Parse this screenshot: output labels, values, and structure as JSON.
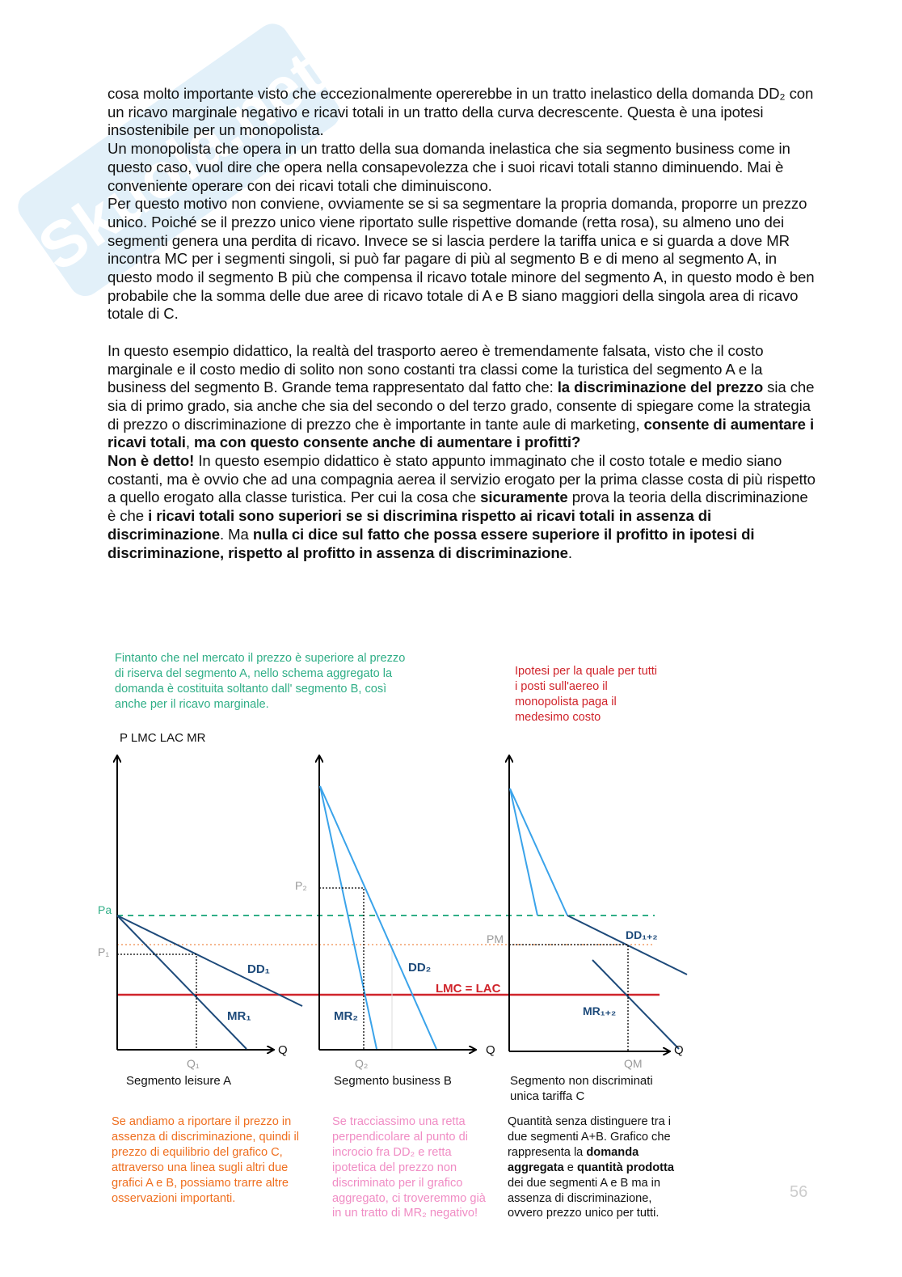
{
  "paragraphs": [
    "cosa molto importante visto che eccezionalmente opererebbe in un tratto inelastico della domanda DD₂ con un ricavo marginale negativo e ricavi totali in un tratto della curva decrescente. Questa è una ipotesi insostenibile per un monopolista.",
    "Un monopolista che opera in un tratto della sua domanda inelastica che sia segmento business come in questo caso, vuol dire che opera nella consapevolezza che i suoi ricavi totali stanno diminuendo. Mai è conveniente operare con dei ricavi totali che diminuiscono.",
    "Per questo motivo non conviene, ovviamente se si sa segmentare la propria domanda, proporre un prezzo unico. Poiché se il prezzo unico viene riportato sulle rispettive domande (retta rosa), su almeno uno dei segmenti genera una perdita di ricavo. Invece se si lascia perdere la tariffa unica e si guarda a dove MR incontra MC per i segmenti singoli, si può far pagare di più al segmento B e di meno al segmento A, in questo modo il segmento B più che compensa il ricavo totale minore del segmento A, in questo modo è ben probabile che la somma delle due aree di ricavo totale di A e B siano maggiori della singola area di ricavo totale di C."
  ],
  "para4": {
    "t1": "In questo esempio didattico, la realtà del trasporto aereo è tremendamente falsata, visto che il costo marginale e il costo medio di solito non sono costanti tra classi come la turistica del segmento A e la business del segmento B. Grande tema rappresentato dal fatto che: ",
    "b1": "la discriminazione del prezzo",
    "t2": " sia che sia di primo grado, sia anche che sia del secondo o del terzo grado, consente di spiegare come la strategia di prezzo o discriminazione di prezzo che è importante in tante aule di marketing, ",
    "b2": "consente di aumentare i ricavi totali",
    "t3": ", ",
    "b3": "ma con questo consente anche di aumentare i profitti?"
  },
  "para5": {
    "b1": "Non è detto!",
    "t1": " In questo esempio didattico è stato appunto immaginato che il costo totale e medio siano costanti, ma è ovvio che ad una compagnia aerea il servizio erogato per la prima classe costa di più rispetto a quello erogato alla classe turistica. Per cui la cosa che ",
    "b2": "sicuramente",
    "t2": " prova la teoria della discriminazione è che ",
    "b3": "i ricavi totali sono superiori se si discrimina rispetto ai ricavi totali in assenza di discriminazione",
    "t3": ". Ma ",
    "b4": "nulla ci dice sul fatto che possa essere superiore il profitto in ipotesi di discriminazione, rispetto al profitto in assenza di discriminazione",
    "t4": "."
  },
  "diagram": {
    "note_green": "Fintanto che nel mercato il prezzo è superiore al prezzo di riserva del segmento A, nello schema aggregato la domanda è costituita soltanto dall' segmento B, così anche per il ricavo marginale.",
    "note_red": "Ipotesi per la quale per tutti i posti sull'aereo il monopolista paga il medesimo costo",
    "y_axis_label": "P LMC LAC MR",
    "labels": {
      "pa": "Pa",
      "p1": "P₁",
      "p2": "P₂",
      "pm": "PM",
      "dd1": "DD₁",
      "mr1": "MR₁",
      "dd2": "DD₂",
      "mr2": "MR₂",
      "dd12": "DD₁₊₂",
      "mr12": "MR₁₊₂",
      "lmc": "LMC = LAC",
      "q": "Q",
      "q1": "Q₁",
      "q2": "Q₂",
      "qm": "QM"
    },
    "captions": {
      "a": "Segmento leisure A",
      "b": "Segmento business B",
      "c1": "Segmento non discriminati",
      "c2": "unica tariffa C"
    },
    "colors": {
      "green": "#2fae86",
      "red": "#d0242b",
      "orange": "#ef6f1f",
      "pink": "#f08cc4",
      "navy": "#1d4a7a",
      "lightblue": "#3aa3ea"
    },
    "note_orange": "Se andiamo a riportare il prezzo in assenza di discriminazione, quindi il prezzo di equilibrio del grafico C, attraverso una linea sugli altri due grafici A e B, possiamo trarre altre osservazioni importanti.",
    "note_pink": "Se tracciassimo una retta perpendicolare al punto di incrocio fra DD₂ e retta ipotetica del prezzo non discriminato per il grafico aggregato, ci troveremmo già in un tratto di MR₂ negativo!",
    "note_black": {
      "t1": "Quantità senza distinguere tra i due segmenti A+B. Grafico che rappresenta la ",
      "b1": "domanda aggregata",
      "t2": " e ",
      "b2": "quantità prodotta",
      "t3": " dei due segmenti A e B ma in assenza di discriminazione, ovvero prezzo unico per tutti."
    }
  },
  "page_number": "56",
  "watermark": "Skuola.net"
}
